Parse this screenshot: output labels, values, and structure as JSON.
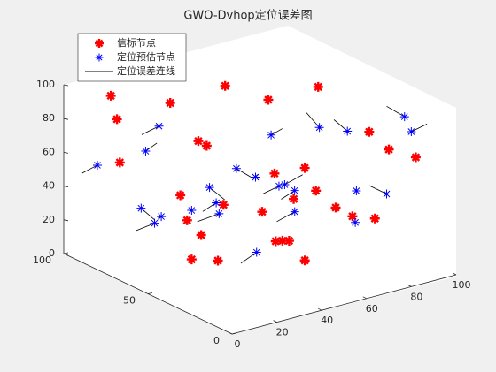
{
  "chart_data": {
    "type": "scatter3",
    "title": "GWO-Dvhop定位误差图",
    "xlim": [
      0,
      100
    ],
    "xticks": [
      0,
      20,
      40,
      60,
      80,
      100
    ],
    "ylim": [
      0,
      100
    ],
    "yticks": [
      0,
      50,
      100
    ],
    "zlim": [
      0,
      100
    ],
    "zticks": [
      0,
      20,
      40,
      60,
      80,
      100
    ],
    "legend": "upper left",
    "series": [
      {
        "name": "信标节点",
        "color": "#ff0000",
        "x": [
          10,
          25,
          40,
          55,
          70,
          85,
          90,
          15,
          30,
          45,
          60,
          75,
          20,
          35,
          50,
          65,
          80,
          5,
          95,
          12,
          42,
          58,
          72,
          88,
          28,
          48,
          66,
          38,
          82,
          18
        ],
        "y": [
          80,
          60,
          90,
          30,
          50,
          20,
          70,
          40,
          10,
          75,
          85,
          15,
          95,
          55,
          5,
          65,
          35,
          25,
          45,
          88,
          22,
          52,
          78,
          8,
          68,
          38,
          92,
          14,
          58,
          48
        ],
        "z": [
          60,
          30,
          80,
          10,
          50,
          70,
          20,
          90,
          40,
          60,
          15,
          35,
          75,
          5,
          55,
          85,
          25,
          45,
          65,
          95,
          30,
          50,
          10,
          70,
          40,
          20,
          80,
          60,
          90,
          15
        ]
      },
      {
        "name": "定位预估节点",
        "color": "#0000ff",
        "x": [
          28,
          40,
          72,
          12,
          30,
          80,
          50,
          95,
          18,
          66,
          35,
          88,
          30,
          55,
          70,
          6,
          92,
          44,
          60,
          15,
          84,
          35,
          70,
          8,
          50
        ],
        "y": [
          45,
          22,
          68,
          40,
          82,
          38,
          64,
          24,
          70,
          14,
          60,
          80,
          26,
          36,
          70,
          88,
          16,
          44,
          28,
          74,
          20,
          90,
          20,
          62,
          76
        ],
        "z": [
          40,
          64,
          30,
          50,
          20,
          74,
          50,
          84,
          26,
          55,
          46,
          16,
          70,
          36,
          60,
          56,
          80,
          12,
          88,
          34,
          44,
          68,
          32,
          76,
          24
        ]
      },
      {
        "name": "定位误差连线",
        "color": "#000000",
        "x": [
          22,
          45,
          68,
          8,
          33,
          77,
          54,
          90,
          14,
          62,
          38,
          85,
          27,
          50,
          72,
          3,
          96,
          40,
          58,
          18,
          80,
          31,
          66,
          10,
          47
        ],
        "y": [
          50,
          18,
          72,
          35,
          88,
          42,
          60,
          28,
          76,
          9,
          55,
          84,
          21,
          40,
          66,
          93,
          12,
          48,
          33,
          70,
          25,
          95,
          15,
          58,
          80
        ],
        "z": [
          35,
          70,
          25,
          55,
          15,
          80,
          45,
          90,
          20,
          60,
          40,
          10,
          75,
          30,
          65,
          50,
          85,
          5,
          95,
          28,
          48,
          62,
          38,
          82,
          18
        ]
      }
    ]
  }
}
